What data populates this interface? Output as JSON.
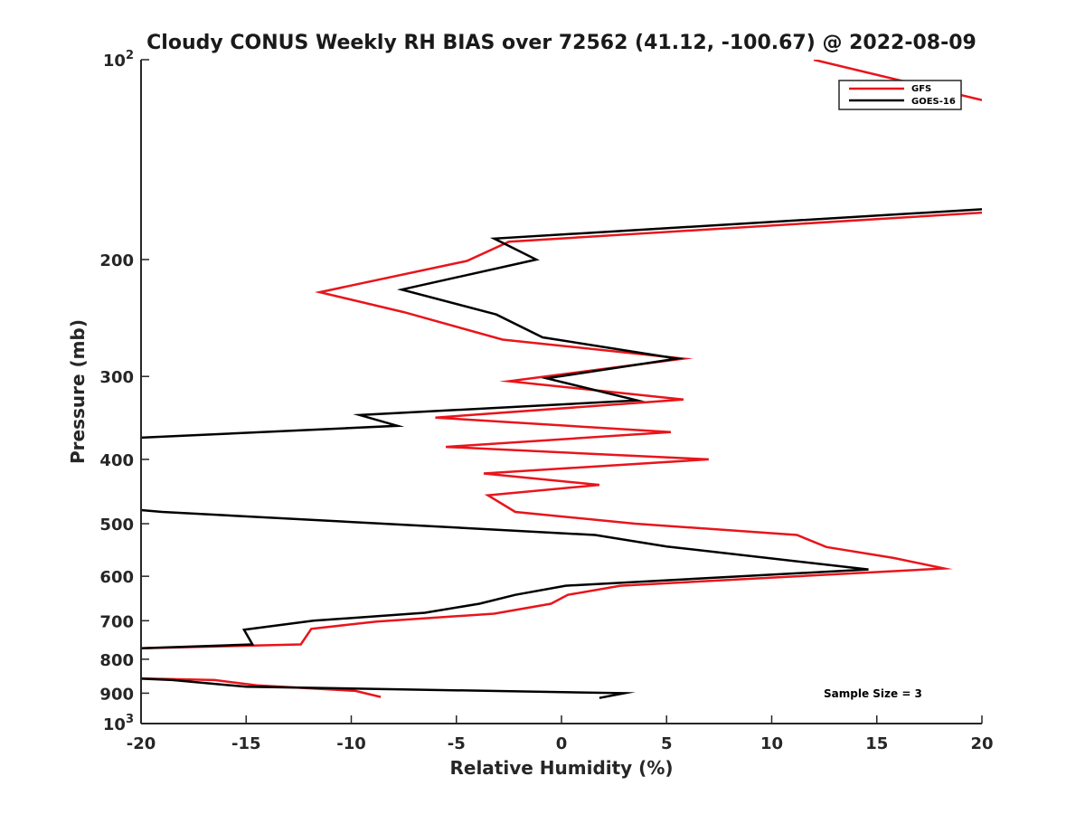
{
  "chart_data": {
    "type": "line",
    "title": "Cloudy CONUS Weekly RH BIAS over 72562 (41.12, -100.67) @ 2022-08-09",
    "xlabel": "Relative Humidity (%)",
    "ylabel": "Pressure (mb)",
    "xlim": [
      -20,
      20
    ],
    "ylim": [
      100,
      1000
    ],
    "yscale": "log",
    "y_reversed": true,
    "grid": false,
    "legend_location": "top-right",
    "annotation": "Sample Size = 3",
    "x_ticks": [
      "-20",
      "-15",
      "-10",
      "-5",
      "0",
      "5",
      "10",
      "15",
      "20"
    ],
    "y_ticks": [
      {
        "value": 100,
        "base": "10",
        "exp": "2"
      },
      {
        "value": 200,
        "label": "200"
      },
      {
        "value": 300,
        "label": "300"
      },
      {
        "value": 400,
        "label": "400"
      },
      {
        "value": 500,
        "label": "500"
      },
      {
        "value": 600,
        "label": "600"
      },
      {
        "value": 700,
        "label": "700"
      },
      {
        "value": 800,
        "label": "800"
      },
      {
        "value": 900,
        "label": "900"
      },
      {
        "value": 1000,
        "base": "10",
        "exp": "3"
      }
    ],
    "series": [
      {
        "name": "GFS",
        "color": "#e8151b",
        "segments": [
          [
            [
              12,
              100
            ],
            [
              20,
              115
            ]
          ],
          [
            [
              20,
              170
            ],
            [
              -2.5,
              188
            ],
            [
              -4.5,
              201
            ],
            [
              -11.5,
              224
            ],
            [
              -7.5,
              240
            ],
            [
              -2.8,
              264
            ],
            [
              5.8,
              282
            ],
            [
              -2.5,
              305
            ],
            [
              5.8,
              325
            ],
            [
              -6,
              346
            ],
            [
              5.2,
              364
            ],
            [
              -5.5,
              383
            ],
            [
              7,
              400
            ],
            [
              -3.7,
              420
            ],
            [
              1.8,
              437
            ],
            [
              -3.5,
              453
            ],
            [
              -2.2,
              480
            ],
            [
              3.5,
              500
            ],
            [
              11.2,
              520
            ],
            [
              12.6,
              542
            ],
            [
              15.8,
              563
            ],
            [
              18.2,
              584
            ],
            [
              2.8,
              620
            ],
            [
              0.3,
              640
            ],
            [
              -0.5,
              660
            ],
            [
              -3.2,
              683
            ],
            [
              -8.8,
              702
            ],
            [
              -11.9,
              720
            ],
            [
              -12.4,
              760
            ],
            [
              -20,
              770
            ]
          ],
          [
            [
              -20,
              855
            ],
            [
              -16.5,
              860
            ],
            [
              -14.5,
              876
            ],
            [
              -9.8,
              893
            ],
            [
              -8.6,
              912
            ]
          ]
        ]
      },
      {
        "name": "GOES-16",
        "color": "#000000",
        "segments": [
          [
            [
              20,
              168
            ],
            [
              -3.2,
              186
            ],
            [
              -1.2,
              200
            ],
            [
              -7.6,
              222
            ],
            [
              -3.1,
              242
            ],
            [
              -0.9,
              262
            ],
            [
              5.5,
              282
            ],
            [
              -0.7,
              302
            ],
            [
              3.6,
              326
            ],
            [
              -9.6,
              343
            ],
            [
              -7.8,
              356
            ],
            [
              -20,
              371
            ]
          ],
          [
            [
              -20,
              477
            ],
            [
              -19,
              480
            ],
            [
              1.6,
              520
            ],
            [
              5,
              541
            ],
            [
              14.6,
              586
            ],
            [
              0.2,
              620
            ],
            [
              -2.2,
              640
            ],
            [
              -3.9,
              660
            ],
            [
              -6.5,
              681
            ],
            [
              -11.8,
              700
            ],
            [
              -15.1,
              722
            ],
            [
              -14.7,
              760
            ],
            [
              -20,
              770
            ]
          ],
          [
            [
              -20,
              856
            ],
            [
              -18.5,
              860
            ],
            [
              -15,
              880
            ],
            [
              3,
              900
            ],
            [
              1.8,
              915
            ]
          ]
        ]
      }
    ]
  }
}
